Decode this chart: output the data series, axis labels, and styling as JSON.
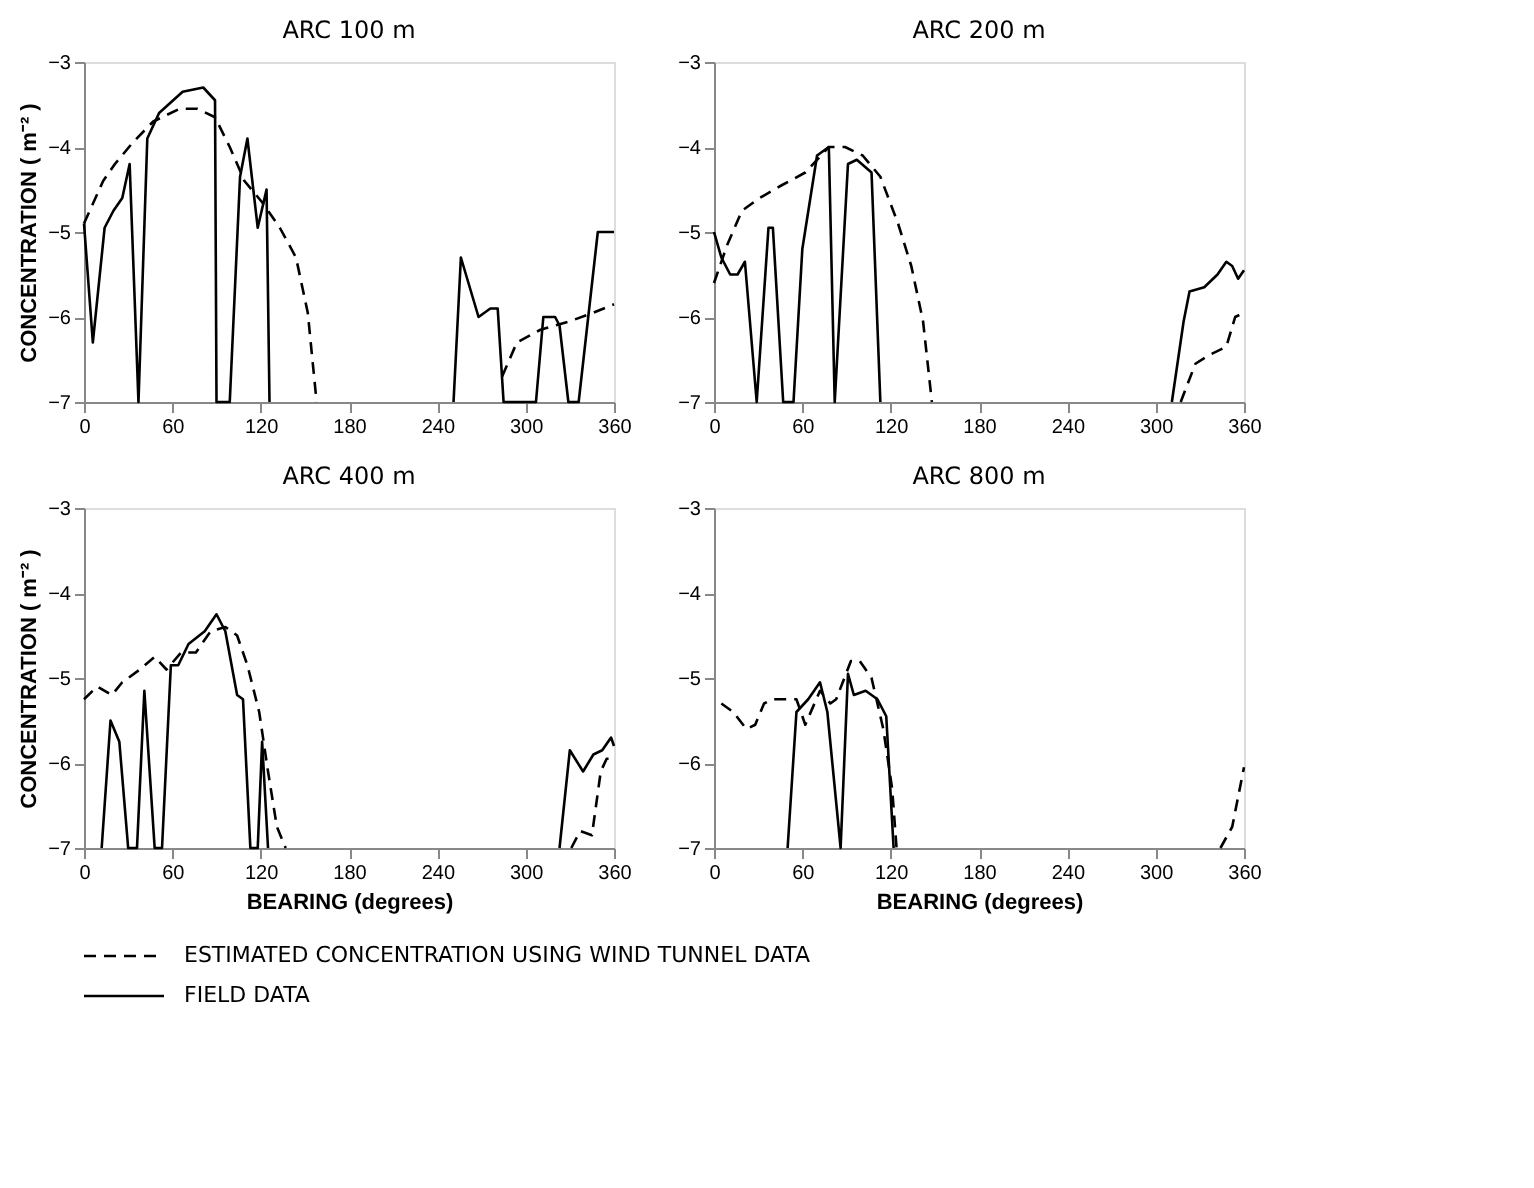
{
  "chart_data": [
    {
      "type": "line",
      "title": "ARC 100 m",
      "ylabel": "CONCENTRATION ( m⁻² )",
      "xlim": [
        0,
        360
      ],
      "xticks": [
        0,
        60,
        120,
        180,
        240,
        300,
        360
      ],
      "ylim": [
        -7,
        -3
      ],
      "yticks": [
        -7,
        -6,
        -5,
        -4,
        -3
      ],
      "grid": false,
      "legend": "bottom",
      "series": [
        {
          "name": "ESTIMATED CONCENTRATION USING WIND TUNNEL DATA",
          "color": "#000000",
          "line_style": "dashed",
          "x": [
            0,
            13,
            21,
            33,
            47,
            65,
            77,
            89,
            99,
            109,
            121,
            133,
            144,
            152,
            158,
            200,
            284,
            294,
            310,
            330,
            346,
            360
          ],
          "values": [
            -4.9,
            -4.4,
            -4.2,
            -3.95,
            -3.7,
            -3.55,
            -3.55,
            -3.65,
            -4.0,
            -4.4,
            -4.65,
            -4.95,
            -5.3,
            -5.95,
            -7,
            null,
            -6.7,
            -6.3,
            -6.15,
            -6.05,
            -5.95,
            -5.85
          ]
        },
        {
          "name": "FIELD DATA",
          "color": "#000000",
          "line_style": "solid",
          "x": [
            0,
            6,
            14,
            20,
            26,
            31,
            37,
            43,
            51,
            67,
            81,
            89,
            90,
            99,
            106,
            111,
            118,
            124,
            126,
            190,
            251,
            256,
            268,
            276,
            281,
            285,
            307,
            312,
            320,
            323,
            329,
            336,
            349,
            360
          ],
          "values": [
            -4.9,
            -6.3,
            -4.95,
            -4.75,
            -4.6,
            -4.2,
            -7,
            -3.9,
            -3.6,
            -3.35,
            -3.3,
            -3.45,
            -7,
            -7,
            -4.35,
            -3.9,
            -4.95,
            -4.5,
            -7,
            null,
            -7,
            -5.3,
            -6.0,
            -5.9,
            -5.9,
            -7,
            -7,
            -6.0,
            -6.0,
            -6.1,
            -7,
            -7,
            -5.0,
            -5.0
          ]
        }
      ]
    },
    {
      "type": "line",
      "title": "ARC 200 m",
      "xlim": [
        0,
        360
      ],
      "xticks": [
        0,
        60,
        120,
        180,
        240,
        300,
        360
      ],
      "ylim": [
        -7,
        -3
      ],
      "yticks": [
        -7,
        -6,
        -5,
        -4,
        -3
      ],
      "grid": false,
      "legend": "bottom",
      "series": [
        {
          "name": "ESTIMATED CONCENTRATION USING WIND TUNNEL DATA",
          "color": "#000000",
          "line_style": "dashed",
          "x": [
            0,
            9,
            19,
            31,
            46,
            62,
            78,
            89,
            101,
            113,
            125,
            134,
            142,
            148,
            230,
            317,
            327,
            336,
            348,
            354,
            360
          ],
          "values": [
            -5.6,
            -5.15,
            -4.75,
            -4.6,
            -4.45,
            -4.3,
            -4.0,
            -4.0,
            -4.1,
            -4.35,
            -4.9,
            -5.4,
            -6.05,
            -7,
            null,
            -7,
            -6.55,
            -6.45,
            -6.35,
            -6.0,
            -5.95
          ]
        },
        {
          "name": "FIELD DATA",
          "color": "#000000",
          "line_style": "solid",
          "x": [
            0,
            5,
            11,
            16,
            21,
            29,
            37,
            40,
            47,
            54,
            60,
            70,
            78,
            82,
            91,
            97,
            107,
            113,
            200,
            311,
            319,
            323,
            333,
            342,
            348,
            352,
            356,
            360
          ],
          "values": [
            -5.0,
            -5.3,
            -5.5,
            -5.5,
            -5.35,
            -7,
            -4.95,
            -4.95,
            -7,
            -7,
            -5.2,
            -4.1,
            -4.0,
            -7,
            -4.2,
            -4.15,
            -4.3,
            -7,
            null,
            -7,
            -6.05,
            -5.7,
            -5.65,
            -5.5,
            -5.35,
            -5.4,
            -5.55,
            -5.45
          ]
        }
      ]
    },
    {
      "type": "line",
      "title": "ARC 400 m",
      "xlabel": "BEARING (degrees)",
      "ylabel": "CONCENTRATION ( m⁻² )",
      "xlim": [
        0,
        360
      ],
      "xticks": [
        0,
        60,
        120,
        180,
        240,
        300,
        360
      ],
      "ylim": [
        -7,
        -3
      ],
      "yticks": [
        -7,
        -6,
        -5,
        -4,
        -3
      ],
      "grid": false,
      "legend": "bottom",
      "series": [
        {
          "name": "ESTIMATED CONCENTRATION USING WIND TUNNEL DATA",
          "color": "#000000",
          "line_style": "dashed",
          "x": [
            0,
            9,
            19,
            26,
            38,
            48,
            56,
            66,
            76,
            86,
            96,
            104,
            111,
            119,
            125,
            131,
            137,
            230,
            331,
            337,
            345,
            351,
            355,
            360
          ],
          "values": [
            -5.25,
            -5.1,
            -5.2,
            -5.05,
            -4.9,
            -4.75,
            -4.9,
            -4.7,
            -4.7,
            -4.45,
            -4.4,
            -4.5,
            -4.85,
            -5.4,
            -6.1,
            -6.75,
            -7,
            null,
            -7,
            -6.8,
            -6.85,
            -6.1,
            -5.95,
            -5.95
          ]
        },
        {
          "name": "FIELD DATA",
          "color": "#000000",
          "line_style": "solid",
          "x": [
            12,
            18,
            24,
            30,
            36,
            41,
            48,
            53,
            59,
            64,
            71,
            82,
            90,
            96,
            104,
            108,
            113,
            118,
            121,
            125,
            220,
            323,
            330,
            339,
            346,
            352,
            358,
            360
          ],
          "values": [
            -7,
            -5.5,
            -5.75,
            -7,
            -7,
            -5.15,
            -7,
            -7,
            -4.85,
            -4.85,
            -4.6,
            -4.45,
            -4.25,
            -4.45,
            -5.2,
            -5.25,
            -7,
            -7,
            -5.75,
            -7,
            null,
            -7,
            -5.85,
            -6.1,
            -5.9,
            -5.85,
            -5.7,
            -5.8
          ]
        }
      ]
    },
    {
      "type": "line",
      "title": "ARC 800 m",
      "xlabel": "BEARING (degrees)",
      "xlim": [
        0,
        360
      ],
      "xticks": [
        0,
        60,
        120,
        180,
        240,
        300,
        360
      ],
      "ylim": [
        -7,
        -3
      ],
      "yticks": [
        -7,
        -6,
        -5,
        -4,
        -3
      ],
      "grid": false,
      "legend": "bottom",
      "series": [
        {
          "name": "ESTIMATED CONCENTRATION USING WIND TUNNEL DATA",
          "color": "#000000",
          "line_style": "dashed",
          "x": [
            5,
            13,
            22,
            28,
            34,
            40,
            56,
            62,
            72,
            79,
            83,
            93,
            99,
            107,
            115,
            121,
            124,
            230,
            344,
            352,
            360
          ],
          "values": [
            -5.3,
            -5.4,
            -5.6,
            -5.55,
            -5.3,
            -5.25,
            -5.25,
            -5.55,
            -5.15,
            -5.3,
            -5.25,
            -4.8,
            -4.8,
            -5.0,
            -5.6,
            -6.3,
            -7,
            null,
            -7,
            -6.75,
            -6.05
          ]
        },
        {
          "name": "FIELD DATA",
          "color": "#000000",
          "line_style": "solid",
          "x": [
            50,
            56,
            64,
            72,
            77,
            86,
            91,
            95,
            103,
            111,
            117,
            122
          ],
          "values": [
            -7,
            -5.4,
            -5.25,
            -5.05,
            -5.4,
            -7,
            -4.95,
            -5.2,
            -5.15,
            -5.25,
            -5.45,
            -7
          ]
        }
      ]
    }
  ]
}
